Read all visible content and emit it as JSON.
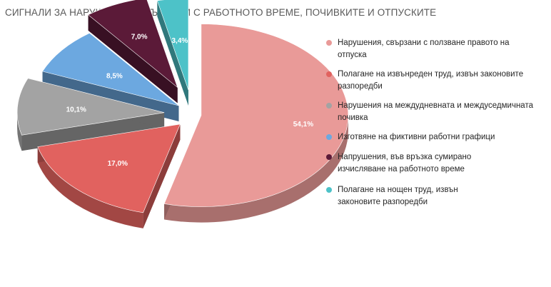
{
  "chart_data": {
    "type": "pie",
    "title": "СИГНАЛИ ЗА НАРУШЕНИЯ, СВЪРЗАНИ С РАБОТНОТО ВРЕМЕ, ПОЧИВКИТЕ И ОТПУСКИТЕ",
    "three_d": true,
    "exploded": true,
    "legend_position": "right",
    "slices": [
      {
        "label": "Нарушения, свързани с ползване правото на отпуска",
        "value": 54.1,
        "display": "54,1%",
        "color": "#E99A98"
      },
      {
        "label": "Полагане на извънреден труд, извън законовите разпоредби",
        "value": 17.0,
        "display": "17,0%",
        "color": "#E1625F"
      },
      {
        "label": "Нарушения на междудневната и междуседмичната  почивка",
        "value": 10.1,
        "display": "10,1%",
        "color": "#A3A3A3"
      },
      {
        "label": "Изготвяне на фиктивни работни графици",
        "value": 8.5,
        "display": "8,5%",
        "color": "#6CA8E0"
      },
      {
        "label": "Напрушения, във връзка сумирано изчисляване на работното време",
        "value": 7.0,
        "display": "7,0%",
        "color": "#5B1A38"
      },
      {
        "label": "Полагане на нощен труд, извън законовите разпоредби",
        "value": 3.4,
        "display": "3,4%",
        "color": "#4DC2C8"
      }
    ]
  }
}
